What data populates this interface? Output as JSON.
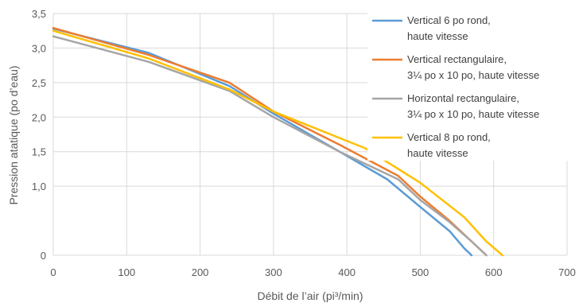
{
  "chart_data": {
    "type": "line",
    "xlabel": "Débit de l’air (pi³/min)",
    "ylabel": "Pression atatique (po d’eau)",
    "xlim": [
      0,
      700
    ],
    "ylim": [
      0,
      3.5
    ],
    "x_ticks": [
      "0",
      "100",
      "200",
      "300",
      "400",
      "500",
      "600",
      "700"
    ],
    "y_ticks": [
      {
        "value": 0,
        "label": "0"
      },
      {
        "value": 1.0,
        "label": "1,0"
      },
      {
        "value": 1.5,
        "label": "1,5"
      },
      {
        "value": 2.0,
        "label": "2,0"
      },
      {
        "value": 2.5,
        "label": "2,5"
      },
      {
        "value": 3.0,
        "label": "3,0"
      },
      {
        "value": 3.5,
        "label": "3,5"
      }
    ],
    "grid": true,
    "legend_position": "top-right",
    "series": [
      {
        "name": "Vertical 6 po rond, haute vitesse",
        "legend_lines": [
          "Vertical 6 po rond,",
          "haute vitesse"
        ],
        "color": "#5B9BD5",
        "x": [
          0,
          130,
          240,
          300,
          390,
          455,
          500,
          540,
          560,
          570
        ],
        "y": [
          3.28,
          2.93,
          2.45,
          2.05,
          1.5,
          1.1,
          0.7,
          0.35,
          0.1,
          0.0
        ]
      },
      {
        "name": "Vertical rectangulaire, 3¼ po x 10 po, haute vitesse",
        "legend_lines": [
          "Vertical rectangulaire,",
          "3¼ po x 10 po, haute vitesse"
        ],
        "color": "#ED7D31",
        "x": [
          0,
          130,
          240,
          300,
          390,
          470,
          500,
          540,
          570,
          590
        ],
        "y": [
          3.29,
          2.9,
          2.5,
          2.08,
          1.6,
          1.15,
          0.85,
          0.5,
          0.2,
          0.0
        ]
      },
      {
        "name": "Horizontal rectangulaire, 3¼ po x 10 po, haute vitesse",
        "legend_lines": [
          "Horizontal rectangulaire,",
          "3¼ po x 10 po, haute vitesse"
        ],
        "color": "#A5A5A5",
        "x": [
          0,
          130,
          240,
          300,
          390,
          470,
          500,
          540,
          570,
          590
        ],
        "y": [
          3.17,
          2.8,
          2.38,
          2.0,
          1.5,
          1.1,
          0.8,
          0.48,
          0.2,
          0.0
        ]
      },
      {
        "name": "Vertical 8 po rond, haute vitesse",
        "legend_lines": [
          "Vertical 8 po rond,",
          "haute vitesse"
        ],
        "color": "#FFC000",
        "x": [
          0,
          130,
          240,
          300,
          425,
          500,
          560,
          590,
          612
        ],
        "y": [
          3.25,
          2.85,
          2.4,
          2.08,
          1.55,
          1.05,
          0.55,
          0.2,
          0.0
        ]
      }
    ]
  }
}
